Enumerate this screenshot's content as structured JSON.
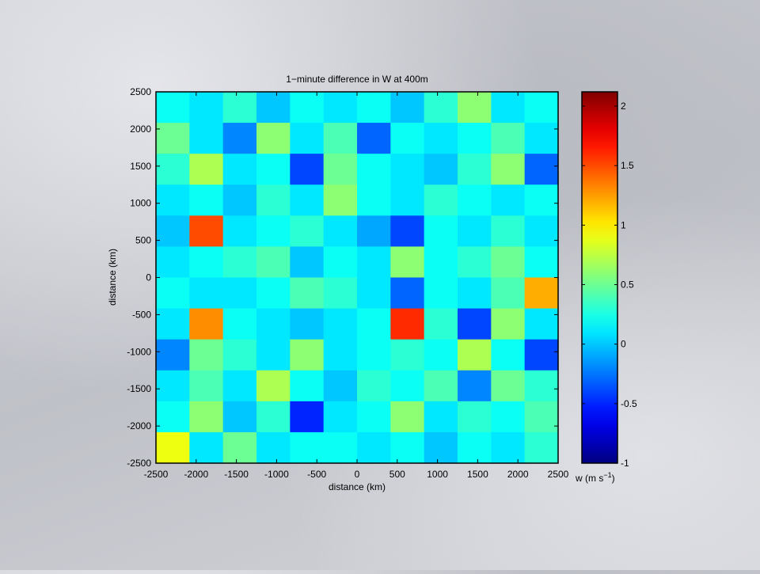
{
  "chart_data": {
    "type": "heatmap",
    "title": "1−minute difference in W at 400m",
    "x_label": "distance (km)",
    "y_label": "distance (km)",
    "colorbar_label": {
      "text": "w (m s",
      "sup": "−1",
      "end": ")"
    },
    "xlim": [
      -2500,
      2500
    ],
    "ylim": [
      -2500,
      2500
    ],
    "xticks": [
      -2500,
      -2000,
      -1500,
      -1000,
      -500,
      0,
      500,
      1000,
      1500,
      2000,
      2500
    ],
    "yticks": [
      -2500,
      -2000,
      -1500,
      -1000,
      -500,
      0,
      500,
      1000,
      1500,
      2000,
      2500
    ],
    "clim": [
      -1,
      2.12
    ],
    "cticks": [
      -1,
      -0.5,
      0,
      0.5,
      1,
      1.5,
      2
    ],
    "colormap": "jet",
    "z": [
      [
        0.2,
        0.1,
        0.3,
        0.0,
        0.2,
        0.1,
        0.2,
        0.0,
        0.3,
        0.6,
        0.1,
        0.2
      ],
      [
        0.5,
        0.1,
        -0.2,
        0.6,
        0.1,
        0.4,
        -0.3,
        0.2,
        0.1,
        0.2,
        0.4,
        0.1
      ],
      [
        0.3,
        0.7,
        0.1,
        0.2,
        -0.4,
        0.5,
        0.2,
        0.1,
        0.0,
        0.3,
        0.6,
        -0.3
      ],
      [
        0.1,
        0.2,
        0.0,
        0.3,
        0.1,
        0.6,
        0.2,
        0.1,
        0.3,
        0.2,
        0.1,
        0.2
      ],
      [
        0.0,
        1.5,
        0.1,
        0.2,
        0.3,
        0.1,
        -0.1,
        -0.4,
        0.2,
        0.1,
        0.3,
        0.1
      ],
      [
        0.1,
        0.2,
        0.3,
        0.4,
        0.0,
        0.2,
        0.1,
        0.6,
        0.2,
        0.3,
        0.5,
        0.2
      ],
      [
        0.2,
        0.1,
        0.1,
        0.2,
        0.4,
        0.3,
        0.1,
        -0.3,
        0.2,
        0.1,
        0.4,
        1.2
      ],
      [
        0.1,
        1.3,
        0.2,
        0.1,
        0.0,
        0.1,
        0.2,
        1.6,
        0.3,
        -0.4,
        0.6,
        0.1
      ],
      [
        -0.2,
        0.5,
        0.3,
        0.1,
        0.6,
        0.1,
        0.2,
        0.3,
        0.2,
        0.7,
        0.2,
        -0.4
      ],
      [
        0.1,
        0.4,
        0.1,
        0.7,
        0.2,
        0.0,
        0.3,
        0.2,
        0.4,
        -0.2,
        0.5,
        0.3
      ],
      [
        0.2,
        0.6,
        0.0,
        0.3,
        -0.5,
        0.1,
        0.2,
        0.6,
        0.1,
        0.3,
        0.2,
        0.4
      ],
      [
        0.9,
        0.1,
        0.5,
        0.1,
        0.2,
        0.2,
        0.1,
        0.2,
        0.0,
        0.2,
        0.1,
        0.3
      ]
    ]
  }
}
